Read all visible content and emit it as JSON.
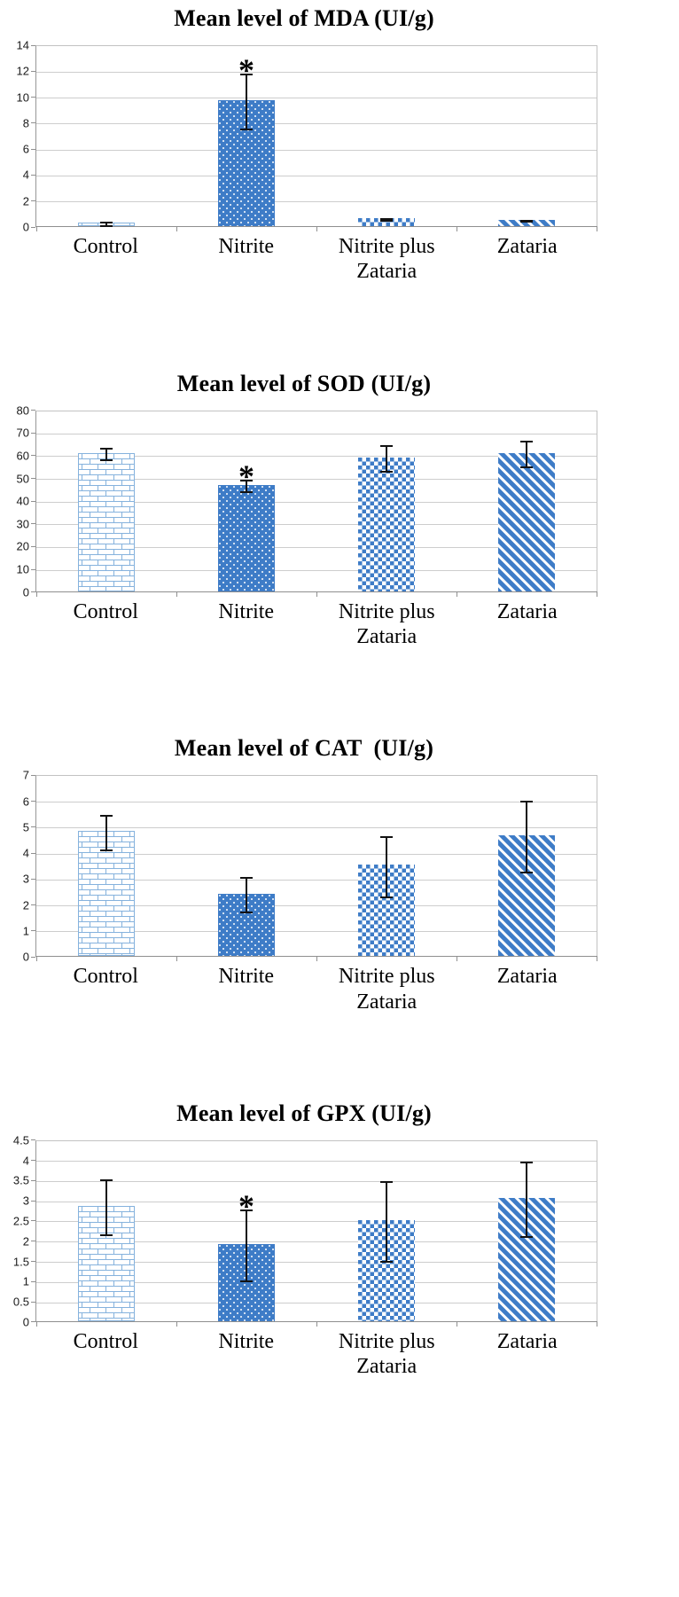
{
  "page": {
    "background": "#ffffff"
  },
  "style": {
    "accent_blue": "#3e7cc7",
    "light_blue": "#85b2dd",
    "gridline_color": "#cdcdcd",
    "axis_color": "#8f8f8f",
    "error_bar_color": "#121212"
  },
  "chart_data": [
    {
      "id": "mda",
      "type": "bar",
      "title": "Mean level of MDA (UI/g)",
      "categories": [
        "Control",
        "Nitrite",
        "Nitrite plus Zataria",
        "Zataria"
      ],
      "values": [
        0.3,
        9.7,
        0.6,
        0.5
      ],
      "errors": [
        0.2,
        2.2,
        0.15,
        0.1
      ],
      "significant": [
        false,
        true,
        false,
        false
      ],
      "significance_symbol": "*",
      "patterns": [
        "brick",
        "dots",
        "checker",
        "diagonal"
      ],
      "ylim": [
        0,
        14
      ],
      "yticks": [
        0,
        2,
        4,
        6,
        8,
        10,
        12,
        14
      ],
      "grid": true,
      "legend": "none"
    },
    {
      "id": "sod",
      "type": "bar",
      "title": "Mean level of SOD (UI/g)",
      "categories": [
        "Control",
        "Nitrite",
        "Nitrite plus Zataria",
        "Zataria"
      ],
      "values": [
        61,
        47,
        59,
        61
      ],
      "errors": [
        3,
        3,
        6,
        6
      ],
      "significant": [
        false,
        true,
        false,
        false
      ],
      "significance_symbol": "*",
      "patterns": [
        "brick",
        "dots",
        "checker",
        "diagonal"
      ],
      "ylim": [
        0,
        80
      ],
      "yticks": [
        0,
        10,
        20,
        30,
        40,
        50,
        60,
        70,
        80
      ],
      "grid": true,
      "legend": "none"
    },
    {
      "id": "cat",
      "type": "bar",
      "title": "Mean level of CAT  (UI/g)",
      "categories": [
        "Control",
        "Nitrite",
        "Nitrite plus Zataria",
        "Zataria"
      ],
      "values": [
        4.8,
        2.4,
        3.5,
        4.65
      ],
      "errors": [
        0.7,
        0.7,
        1.2,
        1.4
      ],
      "significant": [
        false,
        false,
        false,
        false
      ],
      "significance_symbol": "*",
      "patterns": [
        "brick",
        "dots",
        "checker",
        "diagonal"
      ],
      "ylim": [
        0,
        7
      ],
      "yticks": [
        0,
        1,
        2,
        3,
        4,
        5,
        6,
        7
      ],
      "grid": true,
      "legend": "none"
    },
    {
      "id": "gpx",
      "type": "bar",
      "title": "Mean level of GPX (UI/g)",
      "categories": [
        "Control",
        "Nitrite",
        "Nitrite plus Zataria",
        "Zataria"
      ],
      "values": [
        2.85,
        1.9,
        2.5,
        3.05
      ],
      "errors": [
        0.7,
        0.9,
        1.0,
        0.95
      ],
      "significant": [
        false,
        true,
        false,
        false
      ],
      "significance_symbol": "*",
      "patterns": [
        "brick",
        "dots",
        "checker",
        "diagonal"
      ],
      "ylim": [
        0,
        4.5
      ],
      "yticks": [
        0,
        0.5,
        1,
        1.5,
        2,
        2.5,
        3,
        3.5,
        4,
        4.5
      ],
      "grid": true,
      "legend": "none"
    }
  ]
}
